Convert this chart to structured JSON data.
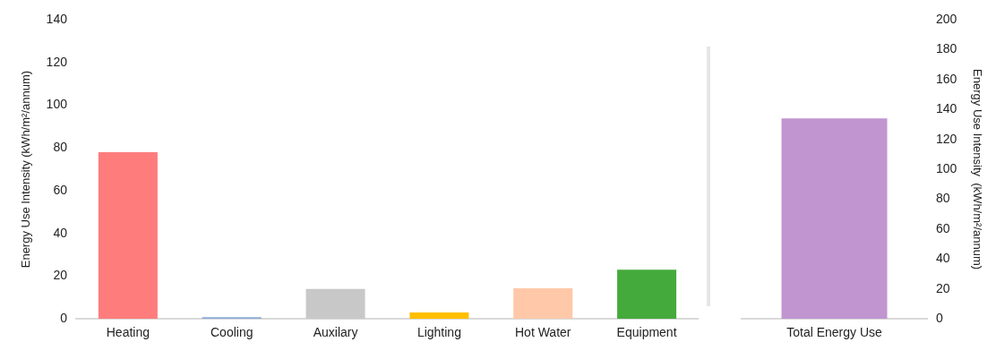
{
  "chart_data": [
    {
      "type": "bar",
      "categories": [
        "Heating",
        "Cooling",
        "Auxilary",
        "Lighting",
        "Hot Water",
        "Equipment"
      ],
      "values": [
        78,
        0.8,
        14,
        3,
        14.3,
        23
      ],
      "colors": [
        "#ff7c7c",
        "#8eaad8",
        "#c8c8c8",
        "#ffc000",
        "#ffc8a8",
        "#44aa3c"
      ],
      "ylabel": "Energy Use Intensity (kWh/m²/annum)",
      "ylim": [
        0,
        140
      ],
      "yticks": [
        0,
        20,
        40,
        60,
        80,
        100,
        120,
        140
      ],
      "grid": false,
      "legend": false
    },
    {
      "type": "bar",
      "categories": [
        "Total Energy Use"
      ],
      "series": [
        {
          "values": [
            134
          ],
          "color": "#c095d0",
          "axis": "y2"
        }
      ],
      "y2label": "Energy Use Intensity  (kWh/m²/annum)",
      "y2lim": [
        0,
        200
      ],
      "y2ticks": [
        0,
        20,
        40,
        60,
        80,
        100,
        120,
        140,
        160,
        180,
        200
      ],
      "grid": false,
      "legend": false
    }
  ]
}
